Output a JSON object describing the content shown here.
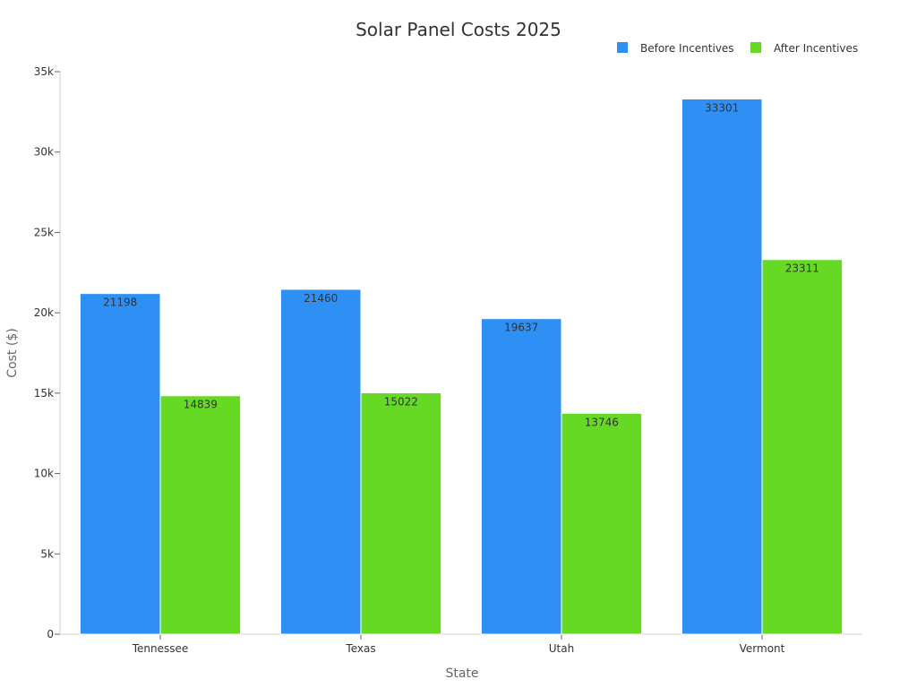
{
  "chart_data": {
    "type": "bar",
    "title": "Solar Panel Costs 2025",
    "xlabel": "State",
    "ylabel": "Cost ($)",
    "categories": [
      "Tennessee",
      "Texas",
      "Utah",
      "Vermont"
    ],
    "series": [
      {
        "name": "Before Incentives",
        "color": "#2e90f5",
        "values": [
          21198,
          21460,
          19637,
          33301
        ]
      },
      {
        "name": "After Incentives",
        "color": "#66d925",
        "values": [
          14839,
          15022,
          13746,
          23311
        ]
      }
    ],
    "ylim": [
      0,
      35000
    ],
    "yticks": [
      0,
      5000,
      10000,
      15000,
      20000,
      25000,
      30000,
      35000
    ],
    "ytick_labels": [
      "0",
      "5k",
      "10k",
      "15k",
      "20k",
      "25k",
      "30k",
      "35k"
    ],
    "legend_position": "top-right",
    "grid": false,
    "colors": {
      "axis": "#cccccc",
      "text": "#333333",
      "axis_title": "#666666"
    }
  }
}
